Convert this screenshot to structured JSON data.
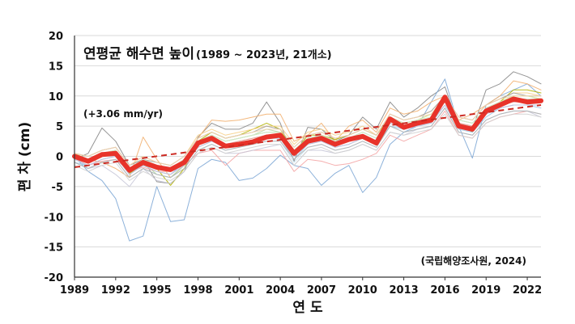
{
  "chart_data": {
    "type": "line",
    "title": "연평균 해수면 높이",
    "subtitle": "(1989 ~ 2023년, 21개소)",
    "xlabel": "연 도",
    "ylabel": "편 차 (cm)",
    "xlim": [
      1989,
      2023
    ],
    "ylim": [
      -20,
      20
    ],
    "x_ticks": [
      "1989",
      "1992",
      "1995",
      "1998",
      "2001",
      "2004",
      "2007",
      "2010",
      "2013",
      "2016",
      "2019",
      "2022"
    ],
    "y_ticks": [
      "20",
      "15",
      "10",
      "5",
      "0",
      "-5",
      "-10",
      "-15",
      "-20"
    ],
    "grid": "horizontal",
    "trend_label": "(+3.06 mm/yr)",
    "source_label": "(국립해양조사원, 2024)",
    "x": [
      1989,
      1990,
      1991,
      1992,
      1993,
      1994,
      1995,
      1996,
      1997,
      1998,
      1999,
      2000,
      2001,
      2002,
      2003,
      2004,
      2005,
      2006,
      2007,
      2008,
      2009,
      2010,
      2011,
      2012,
      2013,
      2014,
      2015,
      2016,
      2017,
      2018,
      2019,
      2020,
      2021,
      2022,
      2023
    ],
    "series": [
      {
        "name": "",
        "color": "#e8332a",
        "width": 6,
        "values": [
          0,
          -0.8,
          0.3,
          0.5,
          -2.3,
          -1,
          -1.8,
          -2.2,
          -1,
          2.2,
          3,
          1.7,
          2,
          2.4,
          3.2,
          3.5,
          0.5,
          2.5,
          3,
          2,
          2.8,
          3.3,
          2.2,
          6.2,
          4.8,
          5.5,
          6,
          9.8,
          5,
          4.5,
          7.5,
          8.5,
          9.5,
          9,
          9.2
        ]
      },
      {
        "name": "",
        "color": "#888888",
        "width": 1,
        "values": [
          -0.5,
          0.5,
          4.7,
          2.5,
          -1.5,
          -0.5,
          -4.2,
          -4.5,
          -2.5,
          3.2,
          5.5,
          4.5,
          4.5,
          5.5,
          9,
          5.5,
          -0.8,
          4.8,
          4.5,
          2.5,
          3.5,
          6.5,
          4.5,
          9,
          6.5,
          8,
          10,
          11.5,
          5,
          4.5,
          11,
          12,
          14,
          13.2,
          12
        ]
      },
      {
        "name": "",
        "color": "#7fa8d6",
        "width": 1,
        "values": [
          0,
          -2.5,
          -4,
          -7,
          -14,
          -13.2,
          -5,
          -10.8,
          -10.5,
          -2,
          -0.5,
          -1,
          -4,
          -3.6,
          -2,
          0.2,
          -1.5,
          -2,
          -4.8,
          -2.8,
          -1.5,
          -6,
          -3.5,
          2,
          4,
          5,
          9,
          12.8,
          5,
          -0.3,
          8.5,
          10,
          11,
          12,
          10
        ]
      },
      {
        "name": "",
        "color": "#f2b070",
        "width": 1,
        "values": [
          0.5,
          -0.5,
          -1,
          -2,
          -3.5,
          3.2,
          -0.5,
          -3.5,
          -1.5,
          3,
          6,
          5.8,
          6,
          6.5,
          7,
          7,
          2.5,
          3.5,
          5.5,
          2.5,
          5,
          6,
          4,
          8,
          7,
          7.5,
          9,
          10,
          6,
          7,
          8.5,
          10,
          12.5,
          12,
          11
        ]
      },
      {
        "name": "",
        "color": "#b3b300",
        "width": 1,
        "values": [
          0,
          -1,
          0.5,
          1,
          -2.8,
          -1.5,
          -2,
          -4.8,
          -2,
          2.5,
          4,
          3,
          3.5,
          4.5,
          5.5,
          4.5,
          0.5,
          3.5,
          3.5,
          2.8,
          3.5,
          4.5,
          3.5,
          6.5,
          5.5,
          6,
          7,
          9.5,
          5.5,
          4,
          7.5,
          9,
          11,
          11,
          10.5
        ]
      },
      {
        "name": "",
        "color": "#a8d8a0",
        "width": 1,
        "values": [
          -0.5,
          -1,
          0,
          0.5,
          -2.5,
          -1,
          -3,
          -3.5,
          -1.5,
          2.5,
          3.5,
          2.5,
          3,
          3.5,
          4,
          4,
          1,
          3,
          3.5,
          2.5,
          3,
          3.5,
          2.5,
          6.5,
          5,
          5.5,
          6.5,
          9,
          5.5,
          5,
          7.5,
          8.5,
          9.5,
          9.5,
          9.5
        ]
      },
      {
        "name": "",
        "color": "#f4a6a6",
        "width": 1,
        "values": [
          -0.3,
          -1.5,
          -0.8,
          -0.5,
          -2.5,
          -1.8,
          -2.5,
          -2.5,
          -1.5,
          0.5,
          1,
          -1.5,
          0.5,
          1,
          1,
          1,
          -2.5,
          -0.5,
          -0.8,
          -1.5,
          -1.2,
          -0.5,
          0.5,
          3.5,
          2.5,
          3.5,
          4.5,
          7.5,
          3.5,
          3,
          5.5,
          6.5,
          7,
          7.5,
          7
        ]
      },
      {
        "name": "",
        "color": "#c8c8d8",
        "width": 1,
        "values": [
          0,
          -2,
          -1.5,
          -3,
          -5,
          -2,
          -4,
          -4.5,
          -2.5,
          0.5,
          1.5,
          0.5,
          0.5,
          1,
          1.5,
          2,
          -1.5,
          1,
          1,
          0.5,
          1,
          2,
          1,
          4,
          3.5,
          4.5,
          5,
          8,
          4,
          3.5,
          6,
          7,
          7.5,
          7.5,
          6.5
        ]
      },
      {
        "name": "",
        "color": "#9ec9e8",
        "width": 1,
        "values": [
          -1,
          -1.5,
          -0.5,
          0,
          -3,
          -1.5,
          -2.5,
          -3,
          -1,
          1.5,
          2.5,
          1.5,
          2,
          2.5,
          3,
          3,
          -0.5,
          2,
          2.5,
          1.5,
          2,
          3,
          2,
          5,
          4.5,
          5,
          5.5,
          8.5,
          4.5,
          4,
          6.5,
          8,
          8.5,
          8.5,
          8
        ]
      },
      {
        "name": "",
        "color": "#f7d08a",
        "width": 1,
        "values": [
          0.5,
          0,
          1,
          1.5,
          -1.5,
          0,
          -1,
          -1.5,
          0,
          3.5,
          4.5,
          3.5,
          4,
          4.5,
          5,
          5,
          2,
          4,
          4.5,
          3.5,
          4,
          5,
          3.5,
          7,
          6,
          6.5,
          7.5,
          10,
          6.5,
          6,
          8.5,
          9.5,
          10.5,
          10.5,
          10
        ]
      },
      {
        "name": "",
        "color": "#d0d0d0",
        "width": 1,
        "values": [
          -1.5,
          -2.5,
          -1.5,
          -1,
          -4,
          -2.5,
          -3.5,
          -4,
          -2.5,
          0.5,
          1.5,
          0.5,
          1,
          1.5,
          2,
          2,
          -1.5,
          1,
          1.5,
          0.5,
          1,
          2,
          1,
          4,
          3.5,
          4,
          4.5,
          7,
          3.5,
          3,
          5.5,
          6.5,
          7,
          7,
          6.5
        ]
      },
      {
        "name": "",
        "color": "#b6d7a8",
        "width": 1,
        "values": [
          0,
          -0.5,
          0.5,
          1,
          -2,
          -0.5,
          -1.5,
          -2,
          -0.5,
          2.5,
          3.5,
          2.5,
          3,
          3.5,
          4.5,
          4,
          1,
          3,
          3.5,
          2.5,
          3,
          4,
          3,
          6.5,
          5.5,
          6,
          7,
          9.5,
          6,
          5.5,
          8,
          9,
          10,
          10,
          9.5
        ]
      },
      {
        "name": "",
        "color": "#e6b8d0",
        "width": 1,
        "values": [
          -0.5,
          -1.5,
          -0.5,
          0,
          -3,
          -1.5,
          -2.5,
          -3,
          -1.5,
          1.5,
          2.5,
          1.5,
          2,
          2.5,
          3,
          3,
          0,
          2,
          2.5,
          1.5,
          2,
          3,
          2,
          5.5,
          4.5,
          5,
          6,
          8.5,
          5,
          4.5,
          7,
          8,
          8.5,
          8.5,
          8.5
        ]
      },
      {
        "name": "",
        "color": "#a0a0a0",
        "width": 1,
        "values": [
          0.5,
          0,
          1,
          1.5,
          -1.5,
          -0.5,
          -1,
          -1.5,
          0,
          3,
          4,
          3,
          3.5,
          4,
          5,
          4.5,
          1.5,
          3.5,
          4,
          3,
          3.5,
          4.5,
          3.5,
          7,
          6,
          6.5,
          7.5,
          10,
          6.5,
          6,
          8.5,
          9.5,
          10.5,
          10,
          10
        ]
      },
      {
        "name": "",
        "color": "#c9e4f2",
        "width": 1,
        "values": [
          -1,
          -2,
          -1,
          -0.5,
          -3.5,
          -2,
          -3,
          -3.5,
          -2,
          1,
          2,
          1,
          1.5,
          2,
          2.5,
          2.5,
          -1,
          1.5,
          2,
          1,
          1.5,
          2.5,
          1.5,
          5,
          4,
          4.5,
          5,
          8,
          4,
          3.5,
          6,
          7,
          7.5,
          7.5,
          7
        ]
      },
      {
        "name": "",
        "color": "#f0c8a0",
        "width": 1,
        "values": [
          0,
          -1,
          0,
          0.5,
          -2.5,
          -1,
          -2,
          -2.5,
          -1,
          2,
          3,
          2,
          2.5,
          3,
          3.5,
          3.5,
          0.5,
          2.5,
          3,
          2,
          2.5,
          3.5,
          2.5,
          6,
          5,
          5.5,
          6.5,
          9,
          5.5,
          5,
          7.5,
          8.5,
          9.5,
          9.5,
          9
        ]
      },
      {
        "name": "",
        "color": "#d8e8a0",
        "width": 1,
        "values": [
          0.5,
          -0.5,
          0.5,
          1,
          -2,
          -0.5,
          -1.5,
          -2,
          -0.5,
          2.5,
          3.5,
          2.5,
          3,
          3.5,
          4,
          4,
          1,
          3,
          3.5,
          2.5,
          3,
          4,
          3,
          6.5,
          5.5,
          6,
          7,
          9.5,
          6,
          5.5,
          8,
          9,
          10,
          10,
          9.5
        ]
      },
      {
        "name": "",
        "color": "#bcc8e0",
        "width": 1,
        "values": [
          -0.5,
          -1.5,
          -0.5,
          0,
          -3,
          -1.5,
          -2.5,
          -3,
          -1.5,
          1.5,
          2.5,
          1.5,
          2,
          2.5,
          3,
          3,
          0,
          2,
          2.5,
          1.5,
          2,
          3,
          2,
          5.5,
          4.5,
          5,
          5.5,
          8.5,
          5,
          4.5,
          7,
          8,
          8.5,
          8.5,
          8.5
        ]
      },
      {
        "name": "",
        "color": "#e0a0a0",
        "width": 1,
        "values": [
          0,
          -1,
          0,
          0.5,
          -2.5,
          -1,
          -2,
          -2.5,
          -1,
          2,
          3,
          2,
          2.5,
          3,
          3.5,
          3.5,
          0.5,
          2.5,
          3,
          2,
          2.5,
          3.5,
          2.5,
          6,
          5,
          5.5,
          6,
          9,
          5.5,
          5,
          7.5,
          8.5,
          9,
          9,
          9
        ]
      },
      {
        "name": "",
        "color": "#b0b0b0",
        "width": 1,
        "values": [
          -1,
          -2,
          -1,
          -0.5,
          -3.5,
          -2,
          -3,
          -3.5,
          -2,
          1,
          2,
          1,
          1.5,
          2,
          2.5,
          2.5,
          -0.5,
          1.5,
          2,
          1,
          1.5,
          2.5,
          1.5,
          5,
          4,
          4.5,
          5,
          8,
          4,
          3.5,
          6,
          7,
          7.5,
          7.5,
          7
        ]
      },
      {
        "name": "",
        "color": "#cfe8cf",
        "width": 1,
        "values": [
          0,
          -0.5,
          0.5,
          1,
          -2,
          -0.5,
          -1.5,
          -2,
          -0.5,
          2.5,
          3.5,
          2.5,
          3,
          3.5,
          4,
          4,
          1,
          3,
          3.5,
          2.5,
          3,
          4,
          3,
          6.5,
          5.5,
          6,
          6.5,
          9.5,
          6,
          5.5,
          8,
          9,
          9.5,
          9.5,
          9.5
        ]
      },
      {
        "name": "",
        "color": "#f5d5b0",
        "width": 1,
        "values": [
          0.5,
          0,
          1,
          1.5,
          -1.5,
          0,
          -1,
          -1.5,
          0,
          3,
          4,
          3,
          3.5,
          4,
          4.5,
          4.5,
          1.5,
          3.5,
          4,
          3,
          3.5,
          4.5,
          3.5,
          7,
          6,
          6.5,
          7,
          10,
          6.5,
          6,
          8.5,
          9.5,
          10,
          10,
          10
        ]
      }
    ],
    "trend": {
      "name": "",
      "color": "#cc2a22",
      "style": "dashed",
      "start": [
        1989,
        -1.8
      ],
      "end": [
        2023,
        8.5
      ]
    }
  }
}
